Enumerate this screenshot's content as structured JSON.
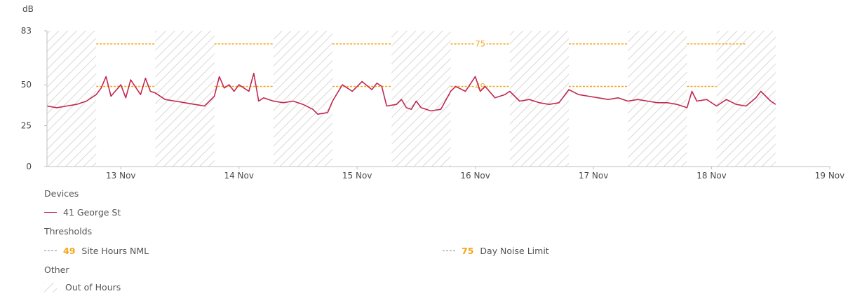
{
  "chart_data": {
    "type": "line",
    "ylabel": "dB",
    "ylim": [
      0,
      83
    ],
    "yticks": [
      0,
      25,
      50,
      83
    ],
    "x_start": "2023-11-12T09:00",
    "x_end": "2023-11-19T00:00",
    "xticks": [
      "13 Nov",
      "14 Nov",
      "15 Nov",
      "16 Nov",
      "17 Nov",
      "18 Nov",
      "19 Nov"
    ],
    "thresholds": [
      {
        "value": 49,
        "label": "Site Hours NML",
        "color": "#f5a516",
        "segments": [
          [
            "2023-11-12T19:00",
            "2023-11-13T07:00"
          ],
          [
            "2023-11-13T19:00",
            "2023-11-14T07:00"
          ],
          [
            "2023-11-14T19:00",
            "2023-11-15T07:00"
          ],
          [
            "2023-11-15T19:00",
            "2023-11-16T07:00"
          ],
          [
            "2023-11-16T19:00",
            "2023-11-17T07:00"
          ],
          [
            "2023-11-17T19:00",
            "2023-11-18T01:00"
          ]
        ],
        "inline_label": "49"
      },
      {
        "value": 75,
        "label": "Day Noise Limit",
        "color": "#f5a516",
        "segments": [
          [
            "2023-11-12T19:00",
            "2023-11-13T07:00"
          ],
          [
            "2023-11-13T19:00",
            "2023-11-14T07:00"
          ],
          [
            "2023-11-14T19:00",
            "2023-11-15T07:00"
          ],
          [
            "2023-11-15T19:00",
            "2023-11-16T07:00"
          ],
          [
            "2023-11-16T19:00",
            "2023-11-17T07:00"
          ],
          [
            "2023-11-17T19:00",
            "2023-11-18T07:00"
          ]
        ],
        "inline_label": "75"
      }
    ],
    "out_of_hours": [
      [
        "2023-11-12T09:00",
        "2023-11-12T19:00"
      ],
      [
        "2023-11-13T07:00",
        "2023-11-13T19:00"
      ],
      [
        "2023-11-14T07:00",
        "2023-11-14T19:00"
      ],
      [
        "2023-11-15T07:00",
        "2023-11-15T19:00"
      ],
      [
        "2023-11-16T07:00",
        "2023-11-16T19:00"
      ],
      [
        "2023-11-17T07:00",
        "2023-11-17T19:00"
      ],
      [
        "2023-11-18T01:00",
        "2023-11-18T13:00"
      ]
    ],
    "series": [
      {
        "name": "41 George St",
        "color": "#c0284f",
        "points": [
          [
            "2023-11-12T09:00",
            37
          ],
          [
            "2023-11-12T11:00",
            36
          ],
          [
            "2023-11-12T13:00",
            37
          ],
          [
            "2023-11-12T15:00",
            38
          ],
          [
            "2023-11-12T17:00",
            40
          ],
          [
            "2023-11-12T19:00",
            44
          ],
          [
            "2023-11-12T20:00",
            48
          ],
          [
            "2023-11-12T21:00",
            55
          ],
          [
            "2023-11-12T22:00",
            43
          ],
          [
            "2023-11-13T00:00",
            50
          ],
          [
            "2023-11-13T01:00",
            42
          ],
          [
            "2023-11-13T02:00",
            53
          ],
          [
            "2023-11-13T04:00",
            44
          ],
          [
            "2023-11-13T05:00",
            54
          ],
          [
            "2023-11-13T06:00",
            46
          ],
          [
            "2023-11-13T07:00",
            45
          ],
          [
            "2023-11-13T09:00",
            41
          ],
          [
            "2023-11-13T11:00",
            40
          ],
          [
            "2023-11-13T13:00",
            39
          ],
          [
            "2023-11-13T15:00",
            38
          ],
          [
            "2023-11-13T17:00",
            37
          ],
          [
            "2023-11-13T19:00",
            43
          ],
          [
            "2023-11-13T20:00",
            55
          ],
          [
            "2023-11-13T21:00",
            48
          ],
          [
            "2023-11-13T22:00",
            50
          ],
          [
            "2023-11-13T23:00",
            46
          ],
          [
            "2023-11-14T00:00",
            50
          ],
          [
            "2023-11-14T02:00",
            46
          ],
          [
            "2023-11-14T03:00",
            57
          ],
          [
            "2023-11-14T04:00",
            40
          ],
          [
            "2023-11-14T05:00",
            42
          ],
          [
            "2023-11-14T07:00",
            40
          ],
          [
            "2023-11-14T09:00",
            39
          ],
          [
            "2023-11-14T11:00",
            40
          ],
          [
            "2023-11-14T13:00",
            38
          ],
          [
            "2023-11-14T15:00",
            35
          ],
          [
            "2023-11-14T16:00",
            32
          ],
          [
            "2023-11-14T18:00",
            33
          ],
          [
            "2023-11-14T19:00",
            40
          ],
          [
            "2023-11-14T21:00",
            50
          ],
          [
            "2023-11-14T23:00",
            46
          ],
          [
            "2023-11-15T01:00",
            52
          ],
          [
            "2023-11-15T03:00",
            47
          ],
          [
            "2023-11-15T04:00",
            51
          ],
          [
            "2023-11-15T05:00",
            49
          ],
          [
            "2023-11-15T06:00",
            37
          ],
          [
            "2023-11-15T08:00",
            38
          ],
          [
            "2023-11-15T09:00",
            41
          ],
          [
            "2023-11-15T10:00",
            36
          ],
          [
            "2023-11-15T11:00",
            35
          ],
          [
            "2023-11-15T12:00",
            40
          ],
          [
            "2023-11-15T13:00",
            36
          ],
          [
            "2023-11-15T15:00",
            34
          ],
          [
            "2023-11-15T17:00",
            35
          ],
          [
            "2023-11-15T19:00",
            46
          ],
          [
            "2023-11-15T20:00",
            49
          ],
          [
            "2023-11-15T22:00",
            46
          ],
          [
            "2023-11-16T00:00",
            55
          ],
          [
            "2023-11-16T01:00",
            46
          ],
          [
            "2023-11-16T02:00",
            49
          ],
          [
            "2023-11-16T04:00",
            42
          ],
          [
            "2023-11-16T06:00",
            44
          ],
          [
            "2023-11-16T07:00",
            46
          ],
          [
            "2023-11-16T09:00",
            40
          ],
          [
            "2023-11-16T11:00",
            41
          ],
          [
            "2023-11-16T13:00",
            39
          ],
          [
            "2023-11-16T15:00",
            38
          ],
          [
            "2023-11-16T17:00",
            39
          ],
          [
            "2023-11-16T19:00",
            47
          ],
          [
            "2023-11-16T21:00",
            44
          ],
          [
            "2023-11-16T23:00",
            43
          ],
          [
            "2023-11-17T01:00",
            42
          ],
          [
            "2023-11-17T03:00",
            41
          ],
          [
            "2023-11-17T05:00",
            42
          ],
          [
            "2023-11-17T07:00",
            40
          ],
          [
            "2023-11-17T09:00",
            41
          ],
          [
            "2023-11-17T11:00",
            40
          ],
          [
            "2023-11-17T13:00",
            39
          ],
          [
            "2023-11-17T15:00",
            39
          ],
          [
            "2023-11-17T17:00",
            38
          ],
          [
            "2023-11-17T19:00",
            36
          ],
          [
            "2023-11-17T20:00",
            46
          ],
          [
            "2023-11-17T21:00",
            40
          ],
          [
            "2023-11-17T23:00",
            41
          ],
          [
            "2023-11-18T01:00",
            37
          ],
          [
            "2023-11-18T03:00",
            41
          ],
          [
            "2023-11-18T05:00",
            38
          ],
          [
            "2023-11-18T07:00",
            37
          ],
          [
            "2023-11-18T09:00",
            42
          ],
          [
            "2023-11-18T10:00",
            46
          ],
          [
            "2023-11-18T11:00",
            43
          ],
          [
            "2023-11-18T12:00",
            40
          ],
          [
            "2023-11-18T13:00",
            38
          ]
        ]
      }
    ]
  },
  "legend": {
    "devices_heading": "Devices",
    "device_label": "41 George St",
    "thresholds_heading": "Thresholds",
    "thresholds": [
      {
        "value": "49",
        "label": "Site Hours NML"
      },
      {
        "value": "75",
        "label": "Day Noise Limit"
      }
    ],
    "other_heading": "Other",
    "out_of_hours_label": "Out of Hours"
  }
}
